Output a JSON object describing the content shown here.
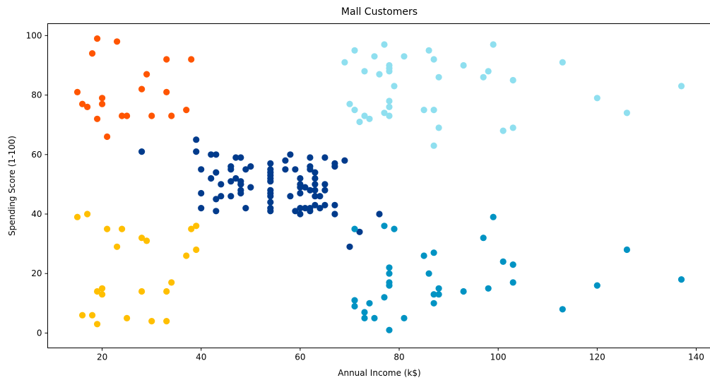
{
  "chart_data": {
    "type": "scatter",
    "title": "Mall Customers",
    "xlabel": "Annual Income (k$)",
    "ylabel": "Spending Score (1-100)",
    "xlim": [
      9,
      143
    ],
    "ylim": [
      -5,
      104
    ],
    "xticks": [
      20,
      40,
      60,
      80,
      100,
      120,
      140
    ],
    "yticks": [
      0,
      20,
      40,
      60,
      80,
      100
    ],
    "grid": false,
    "legend": "none",
    "series": [
      {
        "color": "#ff5500",
        "points": [
          [
            15,
            81
          ],
          [
            16,
            77
          ],
          [
            17,
            76
          ],
          [
            18,
            94
          ],
          [
            19,
            72
          ],
          [
            19,
            99
          ],
          [
            20,
            77
          ],
          [
            20,
            79
          ],
          [
            21,
            66
          ],
          [
            23,
            98
          ],
          [
            24,
            73
          ],
          [
            25,
            73
          ],
          [
            28,
            82
          ],
          [
            29,
            87
          ],
          [
            30,
            73
          ],
          [
            33,
            92
          ],
          [
            33,
            81
          ],
          [
            34,
            73
          ],
          [
            37,
            75
          ],
          [
            38,
            92
          ]
        ]
      },
      {
        "color": "#ffbf00",
        "points": [
          [
            15,
            39
          ],
          [
            16,
            6
          ],
          [
            17,
            40
          ],
          [
            18,
            6
          ],
          [
            19,
            3
          ],
          [
            19,
            14
          ],
          [
            20,
            15
          ],
          [
            20,
            13
          ],
          [
            21,
            35
          ],
          [
            23,
            29
          ],
          [
            24,
            35
          ],
          [
            25,
            5
          ],
          [
            28,
            32
          ],
          [
            28,
            14
          ],
          [
            29,
            31
          ],
          [
            30,
            4
          ],
          [
            33,
            4
          ],
          [
            33,
            14
          ],
          [
            34,
            17
          ],
          [
            37,
            26
          ],
          [
            38,
            35
          ],
          [
            39,
            36
          ],
          [
            39,
            28
          ]
        ]
      },
      {
        "color": "#003b8c",
        "points": [
          [
            28,
            61
          ],
          [
            39,
            65
          ],
          [
            39,
            61
          ],
          [
            40,
            55
          ],
          [
            40,
            47
          ],
          [
            40,
            42
          ],
          [
            42,
            60
          ],
          [
            42,
            52
          ],
          [
            43,
            60
          ],
          [
            43,
            54
          ],
          [
            43,
            45
          ],
          [
            43,
            41
          ],
          [
            44,
            50
          ],
          [
            44,
            46
          ],
          [
            46,
            51
          ],
          [
            46,
            46
          ],
          [
            46,
            56
          ],
          [
            46,
            55
          ],
          [
            47,
            52
          ],
          [
            47,
            59
          ],
          [
            48,
            51
          ],
          [
            48,
            59
          ],
          [
            48,
            50
          ],
          [
            48,
            48
          ],
          [
            48,
            47
          ],
          [
            48,
            50
          ],
          [
            49,
            42
          ],
          [
            49,
            55
          ],
          [
            50,
            49
          ],
          [
            50,
            56
          ],
          [
            54,
            47
          ],
          [
            54,
            54
          ],
          [
            54,
            53
          ],
          [
            54,
            48
          ],
          [
            54,
            52
          ],
          [
            54,
            42
          ],
          [
            54,
            51
          ],
          [
            54,
            55
          ],
          [
            54,
            41
          ],
          [
            54,
            44
          ],
          [
            54,
            57
          ],
          [
            54,
            46
          ],
          [
            57,
            58
          ],
          [
            57,
            55
          ],
          [
            58,
            60
          ],
          [
            58,
            46
          ],
          [
            59,
            55
          ],
          [
            59,
            41
          ],
          [
            60,
            49
          ],
          [
            60,
            40
          ],
          [
            60,
            42
          ],
          [
            60,
            52
          ],
          [
            60,
            47
          ],
          [
            60,
            50
          ],
          [
            61,
            42
          ],
          [
            61,
            49
          ],
          [
            62,
            41
          ],
          [
            62,
            48
          ],
          [
            62,
            59
          ],
          [
            62,
            55
          ],
          [
            62,
            56
          ],
          [
            62,
            42
          ],
          [
            63,
            50
          ],
          [
            63,
            46
          ],
          [
            63,
            43
          ],
          [
            63,
            48
          ],
          [
            63,
            52
          ],
          [
            63,
            54
          ],
          [
            64,
            42
          ],
          [
            64,
            46
          ],
          [
            65,
            48
          ],
          [
            65,
            50
          ],
          [
            65,
            43
          ],
          [
            65,
            59
          ],
          [
            67,
            43
          ],
          [
            67,
            57
          ],
          [
            67,
            56
          ],
          [
            67,
            40
          ],
          [
            69,
            58
          ],
          [
            70,
            29
          ],
          [
            72,
            34
          ],
          [
            76,
            40
          ]
        ]
      },
      {
        "color": "#8fdfef",
        "points": [
          [
            69,
            91
          ],
          [
            70,
            77
          ],
          [
            71,
            95
          ],
          [
            71,
            75
          ],
          [
            72,
            71
          ],
          [
            73,
            88
          ],
          [
            73,
            73
          ],
          [
            74,
            72
          ],
          [
            75,
            93
          ],
          [
            76,
            87
          ],
          [
            77,
            97
          ],
          [
            77,
            74
          ],
          [
            78,
            90
          ],
          [
            78,
            88
          ],
          [
            78,
            76
          ],
          [
            78,
            89
          ],
          [
            78,
            78
          ],
          [
            78,
            73
          ],
          [
            79,
            83
          ],
          [
            81,
            93
          ],
          [
            85,
            75
          ],
          [
            86,
            95
          ],
          [
            87,
            63
          ],
          [
            87,
            75
          ],
          [
            87,
            92
          ],
          [
            88,
            86
          ],
          [
            88,
            69
          ],
          [
            93,
            90
          ],
          [
            97,
            86
          ],
          [
            98,
            88
          ],
          [
            99,
            97
          ],
          [
            101,
            68
          ],
          [
            103,
            85
          ],
          [
            103,
            69
          ],
          [
            113,
            91
          ],
          [
            120,
            79
          ],
          [
            126,
            74
          ],
          [
            137,
            83
          ]
        ]
      },
      {
        "color": "#0093c3",
        "points": [
          [
            71,
            35
          ],
          [
            71,
            11
          ],
          [
            71,
            9
          ],
          [
            73,
            5
          ],
          [
            73,
            7
          ],
          [
            74,
            10
          ],
          [
            75,
            5
          ],
          [
            77,
            12
          ],
          [
            77,
            36
          ],
          [
            78,
            22
          ],
          [
            78,
            17
          ],
          [
            78,
            20
          ],
          [
            78,
            16
          ],
          [
            78,
            1
          ],
          [
            79,
            35
          ],
          [
            81,
            5
          ],
          [
            85,
            26
          ],
          [
            86,
            20
          ],
          [
            87,
            27
          ],
          [
            87,
            13
          ],
          [
            87,
            10
          ],
          [
            88,
            13
          ],
          [
            88,
            15
          ],
          [
            93,
            14
          ],
          [
            97,
            32
          ],
          [
            98,
            15
          ],
          [
            99,
            39
          ],
          [
            101,
            24
          ],
          [
            103,
            17
          ],
          [
            103,
            23
          ],
          [
            113,
            8
          ],
          [
            120,
            16
          ],
          [
            126,
            28
          ],
          [
            137,
            18
          ]
        ]
      }
    ]
  }
}
